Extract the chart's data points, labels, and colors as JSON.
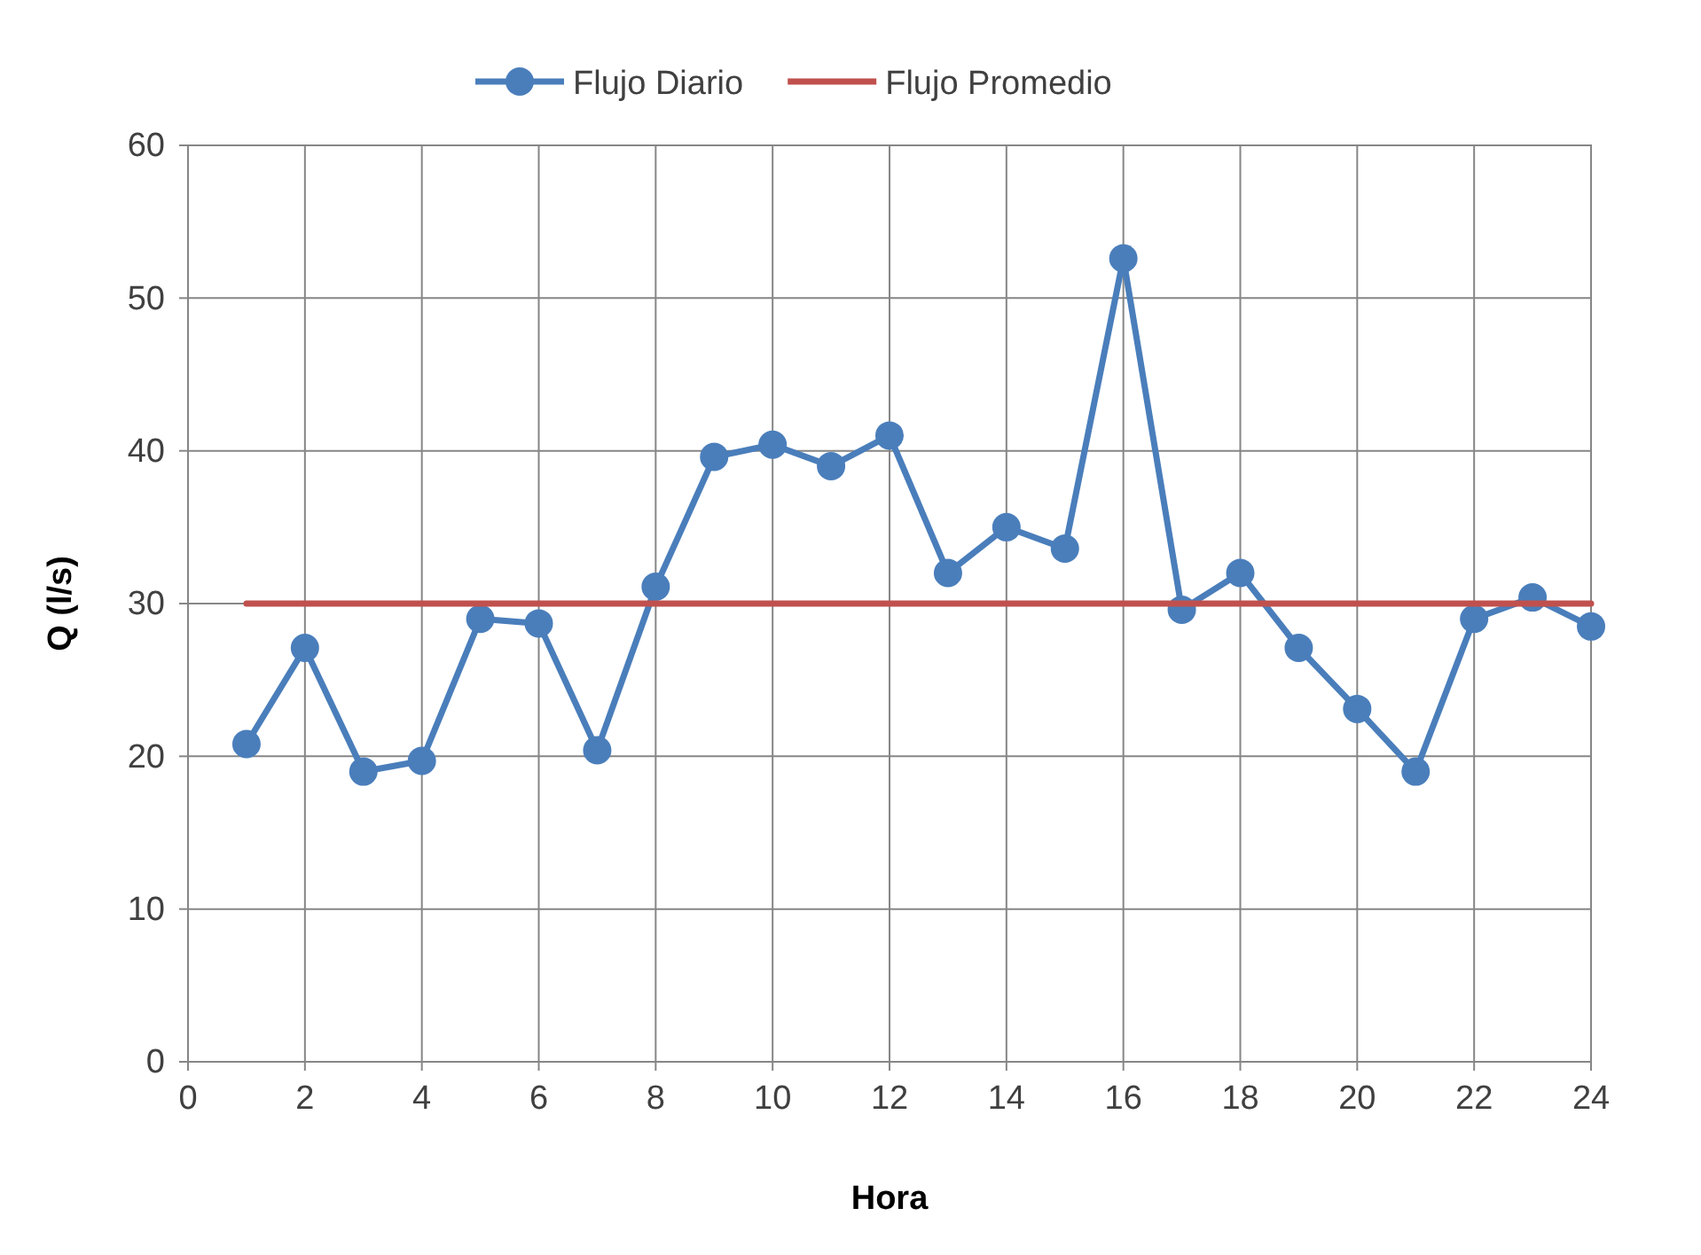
{
  "chart_data": {
    "type": "line",
    "xlabel": "Hora",
    "ylabel": "Q (l/s)",
    "x": [
      1,
      2,
      3,
      4,
      5,
      6,
      7,
      8,
      9,
      10,
      11,
      12,
      13,
      14,
      15,
      16,
      17,
      18,
      19,
      20,
      21,
      22,
      23,
      24
    ],
    "series": [
      {
        "name": "Flujo Diario",
        "color": "#4a7ebb",
        "values": [
          20.8,
          27.1,
          19.0,
          19.7,
          29.0,
          28.7,
          20.4,
          31.1,
          39.6,
          40.4,
          39.0,
          41.0,
          32.0,
          35.0,
          33.6,
          52.6,
          29.6,
          32.0,
          27.1,
          23.1,
          19.0,
          29.0,
          30.4,
          28.5
        ]
      },
      {
        "name": "Flujo Promedio",
        "color": "#c0504d",
        "x": [
          1,
          24
        ],
        "values": [
          30,
          30
        ],
        "marker": "none"
      }
    ],
    "xlim": [
      0,
      24
    ],
    "xticks": [
      0,
      2,
      4,
      6,
      8,
      10,
      12,
      14,
      16,
      18,
      20,
      22,
      24
    ],
    "ylim": [
      0,
      60
    ],
    "yticks": [
      0,
      10,
      20,
      30,
      40,
      50,
      60
    ],
    "grid": true,
    "legend": "top",
    "marker": "circle",
    "line_style": "solid"
  }
}
